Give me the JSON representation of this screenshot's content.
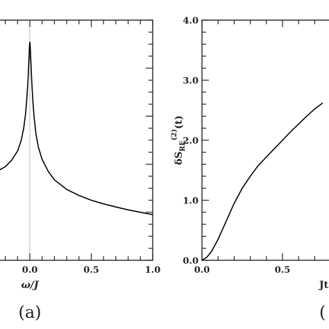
{
  "chart_data": [
    {
      "type": "line",
      "panel_label": "(a)",
      "xlabel": "ω/J",
      "ylabel": "",
      "xlim": [
        -0.5,
        1.0
      ],
      "x_ticks": [
        {
          "value": 0.0,
          "label": "0.0"
        },
        {
          "value": 0.5,
          "label": "0.5"
        },
        {
          "value": 1.0,
          "label": "1.0"
        }
      ],
      "grid": false,
      "reference_line": {
        "x": 0.0,
        "color": "#bbbbbb"
      },
      "series": [
        {
          "color": "#000000",
          "points": [
            [
              -0.5,
              0.335
            ],
            [
              -0.4,
              0.345
            ],
            [
              -0.3,
              0.36
            ],
            [
              -0.2,
              0.39
            ],
            [
              -0.15,
              0.415
            ],
            [
              -0.1,
              0.455
            ],
            [
              -0.07,
              0.5
            ],
            [
              -0.05,
              0.55
            ],
            [
              -0.035,
              0.61
            ],
            [
              -0.025,
              0.67
            ],
            [
              -0.015,
              0.75
            ],
            [
              -0.008,
              0.83
            ],
            [
              -0.003,
              0.89
            ],
            [
              0.0,
              0.91
            ],
            [
              0.003,
              0.89
            ],
            [
              0.008,
              0.83
            ],
            [
              0.015,
              0.75
            ],
            [
              0.025,
              0.66
            ],
            [
              0.035,
              0.595
            ],
            [
              0.05,
              0.525
            ],
            [
              0.07,
              0.47
            ],
            [
              0.1,
              0.42
            ],
            [
              0.15,
              0.37
            ],
            [
              0.2,
              0.335
            ],
            [
              0.3,
              0.295
            ],
            [
              0.4,
              0.27
            ],
            [
              0.5,
              0.25
            ],
            [
              0.6,
              0.235
            ],
            [
              0.7,
              0.222
            ],
            [
              0.8,
              0.21
            ],
            [
              0.9,
              0.2
            ],
            [
              1.0,
              0.19
            ]
          ]
        }
      ]
    },
    {
      "type": "line",
      "panel_label": "(",
      "xlabel": "Jt",
      "ylabel": "δS_RE^(2)(t)",
      "ylabel_parts": {
        "main": "δS",
        "sub": "RE",
        "sup": "(2)",
        "tail": "(t)"
      },
      "xlim": [
        0.0,
        0.75
      ],
      "ylim": [
        0.0,
        4.0
      ],
      "x_ticks": [
        {
          "value": 0.0,
          "label": "0.0"
        },
        {
          "value": 0.5,
          "label": "0.5"
        }
      ],
      "y_ticks": [
        {
          "value": 0.0,
          "label": "0.0"
        },
        {
          "value": 1.0,
          "label": "1.0"
        },
        {
          "value": 2.0,
          "label": "2.0"
        },
        {
          "value": 3.0,
          "label": "3.0"
        },
        {
          "value": 4.0,
          "label": "4.0"
        }
      ],
      "grid": false,
      "series": [
        {
          "color": "#000000",
          "points": [
            [
              0.0,
              0.0
            ],
            [
              0.03,
              0.05
            ],
            [
              0.06,
              0.15
            ],
            [
              0.1,
              0.35
            ],
            [
              0.15,
              0.65
            ],
            [
              0.2,
              0.95
            ],
            [
              0.25,
              1.2
            ],
            [
              0.3,
              1.4
            ],
            [
              0.35,
              1.58
            ],
            [
              0.4,
              1.72
            ],
            [
              0.45,
              1.86
            ],
            [
              0.5,
              2.0
            ],
            [
              0.55,
              2.14
            ],
            [
              0.6,
              2.27
            ],
            [
              0.65,
              2.4
            ],
            [
              0.7,
              2.52
            ],
            [
              0.75,
              2.62
            ]
          ]
        }
      ]
    }
  ]
}
